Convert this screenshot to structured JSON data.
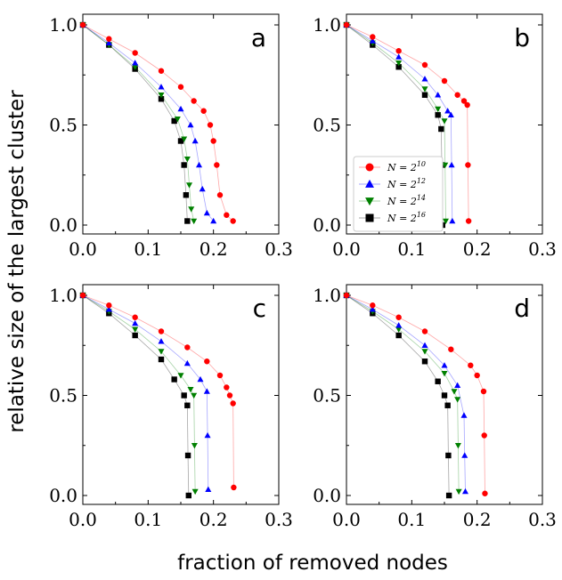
{
  "figure": {
    "ylabel": "relative size of the largest cluster",
    "xlabel": "fraction of removed nodes"
  },
  "legend": {
    "panel": "b",
    "entries": [
      {
        "label": "N = 2^10",
        "base": "N = 2",
        "exp": "10",
        "marker": "circle",
        "color": "#ff0000"
      },
      {
        "label": "N = 2^12",
        "base": "N = 2",
        "exp": "12",
        "marker": "triangle-up",
        "color": "#0000ff"
      },
      {
        "label": "N = 2^14",
        "base": "N = 2",
        "exp": "14",
        "marker": "triangle-down",
        "color": "#008000"
      },
      {
        "label": "N = 2^16",
        "base": "N = 2",
        "exp": "16",
        "marker": "square",
        "color": "#000000"
      }
    ]
  },
  "chart_data": [
    {
      "type": "scatter",
      "panel": "a",
      "xlim": [
        0,
        0.3
      ],
      "ylim": [
        0,
        1
      ],
      "xticks": [
        "0.0",
        "0.1",
        "0.2",
        "0.3"
      ],
      "yticks": [
        "0.0",
        "0.5",
        "1.0"
      ],
      "series": [
        {
          "name": "N = 2^10",
          "color": "#ff0000",
          "marker": "circle",
          "x": [
            0.0,
            0.04,
            0.08,
            0.12,
            0.15,
            0.17,
            0.185,
            0.195,
            0.2,
            0.205,
            0.21,
            0.22,
            0.23
          ],
          "y": [
            1.0,
            0.93,
            0.86,
            0.77,
            0.69,
            0.62,
            0.57,
            0.5,
            0.42,
            0.3,
            0.15,
            0.05,
            0.02
          ]
        },
        {
          "name": "N = 2^12",
          "color": "#0000ff",
          "marker": "triangle-up",
          "x": [
            0.0,
            0.04,
            0.08,
            0.12,
            0.15,
            0.165,
            0.172,
            0.178,
            0.183,
            0.19,
            0.2
          ],
          "y": [
            1.0,
            0.91,
            0.81,
            0.69,
            0.58,
            0.5,
            0.42,
            0.3,
            0.18,
            0.06,
            0.02
          ]
        },
        {
          "name": "N = 2^14",
          "color": "#008000",
          "marker": "triangle-down",
          "x": [
            0.0,
            0.04,
            0.08,
            0.12,
            0.145,
            0.155,
            0.16,
            0.163,
            0.166,
            0.17
          ],
          "y": [
            1.0,
            0.9,
            0.79,
            0.65,
            0.53,
            0.43,
            0.33,
            0.2,
            0.08,
            0.02
          ]
        },
        {
          "name": "N = 2^16",
          "color": "#000000",
          "marker": "square",
          "x": [
            0.0,
            0.04,
            0.08,
            0.12,
            0.14,
            0.15,
            0.155,
            0.158,
            0.16
          ],
          "y": [
            1.0,
            0.9,
            0.78,
            0.63,
            0.52,
            0.42,
            0.3,
            0.15,
            0.02
          ]
        }
      ]
    },
    {
      "type": "scatter",
      "panel": "b",
      "xlim": [
        0,
        0.3
      ],
      "ylim": [
        0,
        1
      ],
      "xticks": [
        "0.0",
        "0.1",
        "0.2",
        "0.3"
      ],
      "yticks": [
        "0.0",
        "0.5",
        "1.0"
      ],
      "series": [
        {
          "name": "N = 2^10",
          "color": "#ff0000",
          "marker": "circle",
          "x": [
            0.0,
            0.04,
            0.08,
            0.12,
            0.15,
            0.17,
            0.18,
            0.185,
            0.186,
            0.187
          ],
          "y": [
            1.0,
            0.94,
            0.87,
            0.8,
            0.72,
            0.65,
            0.62,
            0.6,
            0.3,
            0.02
          ]
        },
        {
          "name": "N = 2^12",
          "color": "#0000ff",
          "marker": "triangle-up",
          "x": [
            0.0,
            0.04,
            0.08,
            0.12,
            0.14,
            0.155,
            0.16,
            0.161,
            0.162
          ],
          "y": [
            1.0,
            0.92,
            0.84,
            0.73,
            0.65,
            0.57,
            0.55,
            0.3,
            0.02
          ]
        },
        {
          "name": "N = 2^14",
          "color": "#008000",
          "marker": "triangle-down",
          "x": [
            0.0,
            0.04,
            0.08,
            0.12,
            0.14,
            0.15,
            0.151,
            0.152
          ],
          "y": [
            1.0,
            0.91,
            0.81,
            0.68,
            0.58,
            0.52,
            0.3,
            0.02
          ]
        },
        {
          "name": "N = 2^16",
          "color": "#000000",
          "marker": "square",
          "x": [
            0.0,
            0.04,
            0.08,
            0.12,
            0.14,
            0.145,
            0.146,
            0.147
          ],
          "y": [
            1.0,
            0.9,
            0.79,
            0.65,
            0.55,
            0.48,
            0.3,
            0.0
          ]
        }
      ]
    },
    {
      "type": "scatter",
      "panel": "c",
      "xlim": [
        0,
        0.3
      ],
      "ylim": [
        0,
        1
      ],
      "xticks": [
        "0.0",
        "0.1",
        "0.2",
        "0.3"
      ],
      "yticks": [
        "0.0",
        "0.5",
        "1.0"
      ],
      "series": [
        {
          "name": "N = 2^10",
          "color": "#ff0000",
          "marker": "circle",
          "x": [
            0.0,
            0.04,
            0.08,
            0.12,
            0.16,
            0.19,
            0.21,
            0.22,
            0.225,
            0.23,
            0.231
          ],
          "y": [
            1.0,
            0.95,
            0.89,
            0.82,
            0.74,
            0.67,
            0.6,
            0.54,
            0.5,
            0.46,
            0.04
          ]
        },
        {
          "name": "N = 2^12",
          "color": "#0000ff",
          "marker": "triangle-up",
          "x": [
            0.0,
            0.04,
            0.08,
            0.12,
            0.16,
            0.18,
            0.19,
            0.191,
            0.192
          ],
          "y": [
            1.0,
            0.93,
            0.86,
            0.77,
            0.66,
            0.58,
            0.52,
            0.3,
            0.03
          ]
        },
        {
          "name": "N = 2^14",
          "color": "#008000",
          "marker": "triangle-down",
          "x": [
            0.0,
            0.04,
            0.08,
            0.12,
            0.15,
            0.165,
            0.17,
            0.171,
            0.172
          ],
          "y": [
            1.0,
            0.92,
            0.83,
            0.72,
            0.6,
            0.53,
            0.5,
            0.25,
            0.02
          ]
        },
        {
          "name": "N = 2^16",
          "color": "#000000",
          "marker": "square",
          "x": [
            0.0,
            0.04,
            0.08,
            0.12,
            0.14,
            0.155,
            0.16,
            0.161,
            0.162
          ],
          "y": [
            1.0,
            0.91,
            0.8,
            0.68,
            0.58,
            0.5,
            0.45,
            0.2,
            0.0
          ]
        }
      ]
    },
    {
      "type": "scatter",
      "panel": "d",
      "xlim": [
        0,
        0.3
      ],
      "ylim": [
        0,
        1
      ],
      "xticks": [
        "0.0",
        "0.1",
        "0.2",
        "0.3"
      ],
      "yticks": [
        "0.0",
        "0.5",
        "1.0"
      ],
      "series": [
        {
          "name": "N = 2^10",
          "color": "#ff0000",
          "marker": "circle",
          "x": [
            0.0,
            0.04,
            0.08,
            0.12,
            0.16,
            0.19,
            0.2,
            0.21,
            0.211,
            0.212
          ],
          "y": [
            1.0,
            0.95,
            0.89,
            0.82,
            0.73,
            0.65,
            0.6,
            0.52,
            0.3,
            0.01
          ]
        },
        {
          "name": "N = 2^12",
          "color": "#0000ff",
          "marker": "triangle-up",
          "x": [
            0.0,
            0.04,
            0.08,
            0.12,
            0.15,
            0.17,
            0.18,
            0.181,
            0.182
          ],
          "y": [
            1.0,
            0.93,
            0.85,
            0.75,
            0.65,
            0.55,
            0.4,
            0.2,
            0.02
          ]
        },
        {
          "name": "N = 2^14",
          "color": "#008000",
          "marker": "triangle-down",
          "x": [
            0.0,
            0.04,
            0.08,
            0.12,
            0.15,
            0.165,
            0.17,
            0.171,
            0.172
          ],
          "y": [
            1.0,
            0.92,
            0.83,
            0.72,
            0.61,
            0.52,
            0.48,
            0.25,
            0.02
          ]
        },
        {
          "name": "N = 2^16",
          "color": "#000000",
          "marker": "square",
          "x": [
            0.0,
            0.04,
            0.08,
            0.12,
            0.14,
            0.15,
            0.155,
            0.156,
            0.157
          ],
          "y": [
            1.0,
            0.91,
            0.8,
            0.67,
            0.57,
            0.5,
            0.45,
            0.2,
            0.0
          ]
        }
      ]
    }
  ]
}
